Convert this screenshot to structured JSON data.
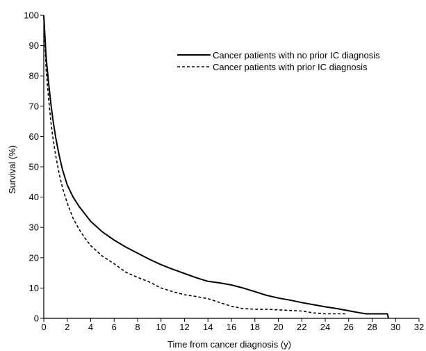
{
  "chart_data": {
    "type": "line",
    "title": "",
    "xlabel": "Time from cancer diagnosis (y)",
    "ylabel": "Survival (%)",
    "xlim": [
      0,
      32
    ],
    "ylim": [
      0,
      100
    ],
    "xticks": [
      0,
      2,
      4,
      6,
      8,
      10,
      12,
      14,
      16,
      18,
      20,
      22,
      24,
      26,
      28,
      30,
      32
    ],
    "yticks": [
      0,
      10,
      20,
      30,
      40,
      50,
      60,
      70,
      80,
      90,
      100
    ],
    "grid": false,
    "legend_position": "top-right",
    "series": [
      {
        "name": "Cancer patients with no prior IC diagnosis",
        "style": "solid",
        "color": "#000000",
        "x": [
          0,
          0.1,
          0.2,
          0.4,
          0.6,
          0.8,
          1.0,
          1.3,
          1.6,
          2.0,
          2.5,
          3.0,
          3.5,
          4.0,
          5.0,
          6.0,
          7.0,
          8.0,
          9.0,
          10.0,
          11.0,
          12.0,
          13.0,
          14.0,
          15.0,
          16.0,
          17.0,
          18.0,
          19.0,
          20.0,
          21.0,
          22.0,
          23.0,
          24.0,
          25.0,
          26.0,
          27.0,
          27.5,
          28.0,
          29.0,
          29.3,
          29.4
        ],
        "values": [
          100,
          93,
          86,
          78,
          71,
          65,
          60,
          54,
          49,
          44,
          40,
          37,
          34.5,
          32,
          28.5,
          25.8,
          23.5,
          21.5,
          19.5,
          17.7,
          16.2,
          14.8,
          13.4,
          12.2,
          11.7,
          11.0,
          10.0,
          8.8,
          7.6,
          6.7,
          6.0,
          5.2,
          4.5,
          3.8,
          3.2,
          2.5,
          1.8,
          1.5,
          1.5,
          1.5,
          1.5,
          0
        ]
      },
      {
        "name": "Cancer patients with prior IC diagnosis",
        "style": "dashed",
        "color": "#000000",
        "x": [
          0,
          0.1,
          0.2,
          0.4,
          0.6,
          0.8,
          1.0,
          1.3,
          1.6,
          2.0,
          2.5,
          3.0,
          3.5,
          4.0,
          5.0,
          6.0,
          7.0,
          8.0,
          9.0,
          10.0,
          11.0,
          12.0,
          13.0,
          14.0,
          15.0,
          16.0,
          17.0,
          18.0,
          19.0,
          20.0,
          21.0,
          22.0,
          23.0,
          24.0,
          25.0,
          25.8
        ],
        "values": [
          100,
          90,
          82,
          73,
          65,
          59,
          54,
          48,
          43,
          38,
          33,
          29.5,
          26.5,
          24,
          20.5,
          18,
          15.2,
          13.5,
          12,
          10,
          8.8,
          7.8,
          7.2,
          6.5,
          5.2,
          4,
          3.2,
          3.0,
          3.0,
          2.8,
          2.6,
          2.4,
          1.8,
          1.5,
          1.5,
          1.5
        ]
      }
    ]
  }
}
